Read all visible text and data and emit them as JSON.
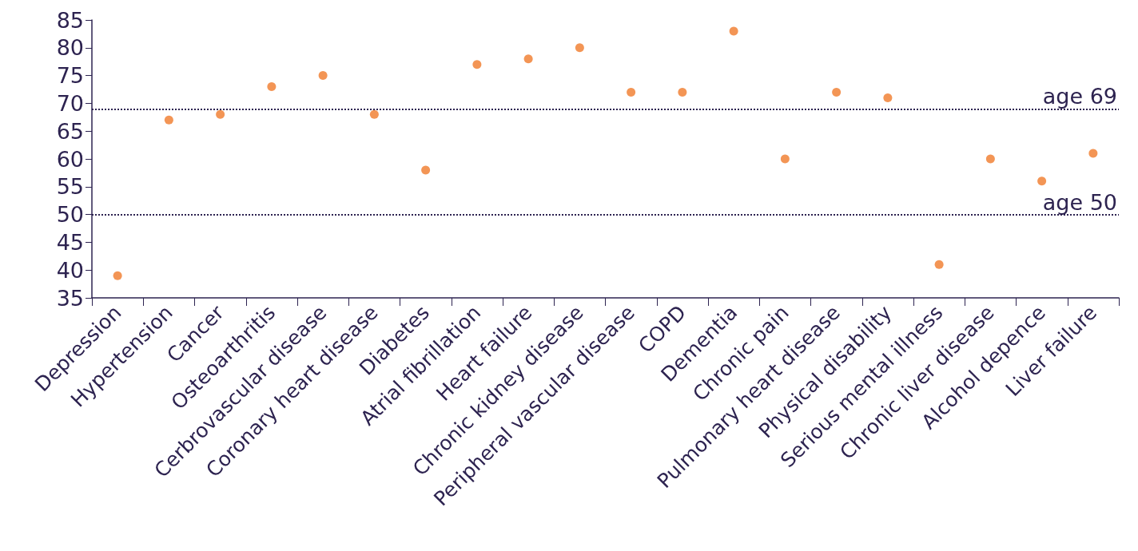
{
  "chart_data": {
    "type": "scatter",
    "categories": [
      "Depression",
      "Hypertension",
      "Cancer",
      "Osteoarthritis",
      "Cerbrovascular disease",
      "Coronary heart disease",
      "Diabetes",
      "Atrial fibrillation",
      "Heart failure",
      "Chronic kidney disease",
      "Peripheral vascular disease",
      "COPD",
      "Dementia",
      "Chronic pain",
      "Pulmonary heart disease",
      "Physical disability",
      "Serious mental illness",
      "Chronic liver disease",
      "Alcohol depence",
      "Liver failure"
    ],
    "series": [
      {
        "color": "#f07a2a",
        "values": [
          39,
          67,
          68,
          73,
          75,
          68,
          58,
          77,
          78,
          80,
          72,
          72,
          83,
          60,
          72,
          71,
          41,
          60,
          56,
          61
        ]
      }
    ],
    "ylim": [
      35,
      85
    ],
    "yticks": [
      35,
      40,
      45,
      50,
      55,
      60,
      65,
      70,
      75,
      80,
      85
    ],
    "grid": false,
    "marker": "circle",
    "ref_lines": [
      {
        "axis": "y",
        "value": 69,
        "label": "age 69",
        "color": "#2d2350",
        "line_style": "dotted"
      },
      {
        "axis": "y",
        "value": 50,
        "label": "age 50",
        "color": "#2d2350",
        "line_style": "dotted"
      }
    ]
  }
}
